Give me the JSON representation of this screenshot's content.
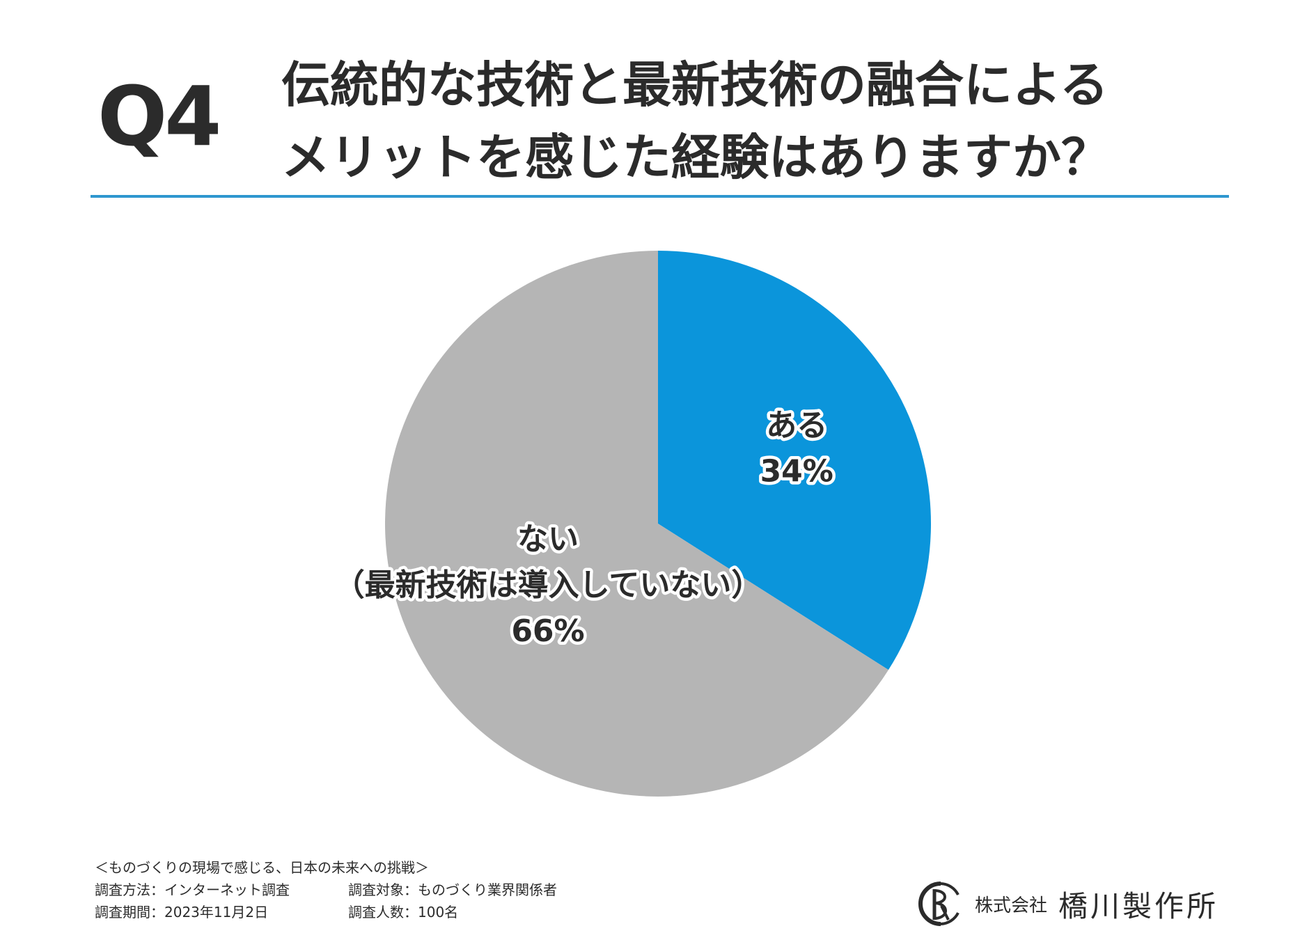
{
  "header": {
    "question_number": "Q4",
    "title_line1": "伝統的な技術と最新技術の融合による",
    "title_line2": "メリットを感じた経験はありますか？"
  },
  "chart_data": {
    "type": "pie",
    "categories": [
      "ある",
      "ない\n（最新技術は導入していない）"
    ],
    "values": [
      34,
      66
    ],
    "labels": [
      "34%",
      "66%"
    ],
    "colors": [
      "#0b95db",
      "#b5b5b5"
    ],
    "start_angle": "12 o'clock",
    "direction": "clockwise"
  },
  "footer": {
    "survey_name": "＜ものづくりの現場で感じる、日本の未来への挑戦＞",
    "method_label": "調査方法：インターネット調査",
    "target_label": "調査対象：ものづくり業界関係者",
    "period_label": "調査期間：2023年11月2日",
    "count_label": "調査人数：100名"
  },
  "logo": {
    "company_type": "株式会社",
    "company_name": "橋川製作所"
  }
}
